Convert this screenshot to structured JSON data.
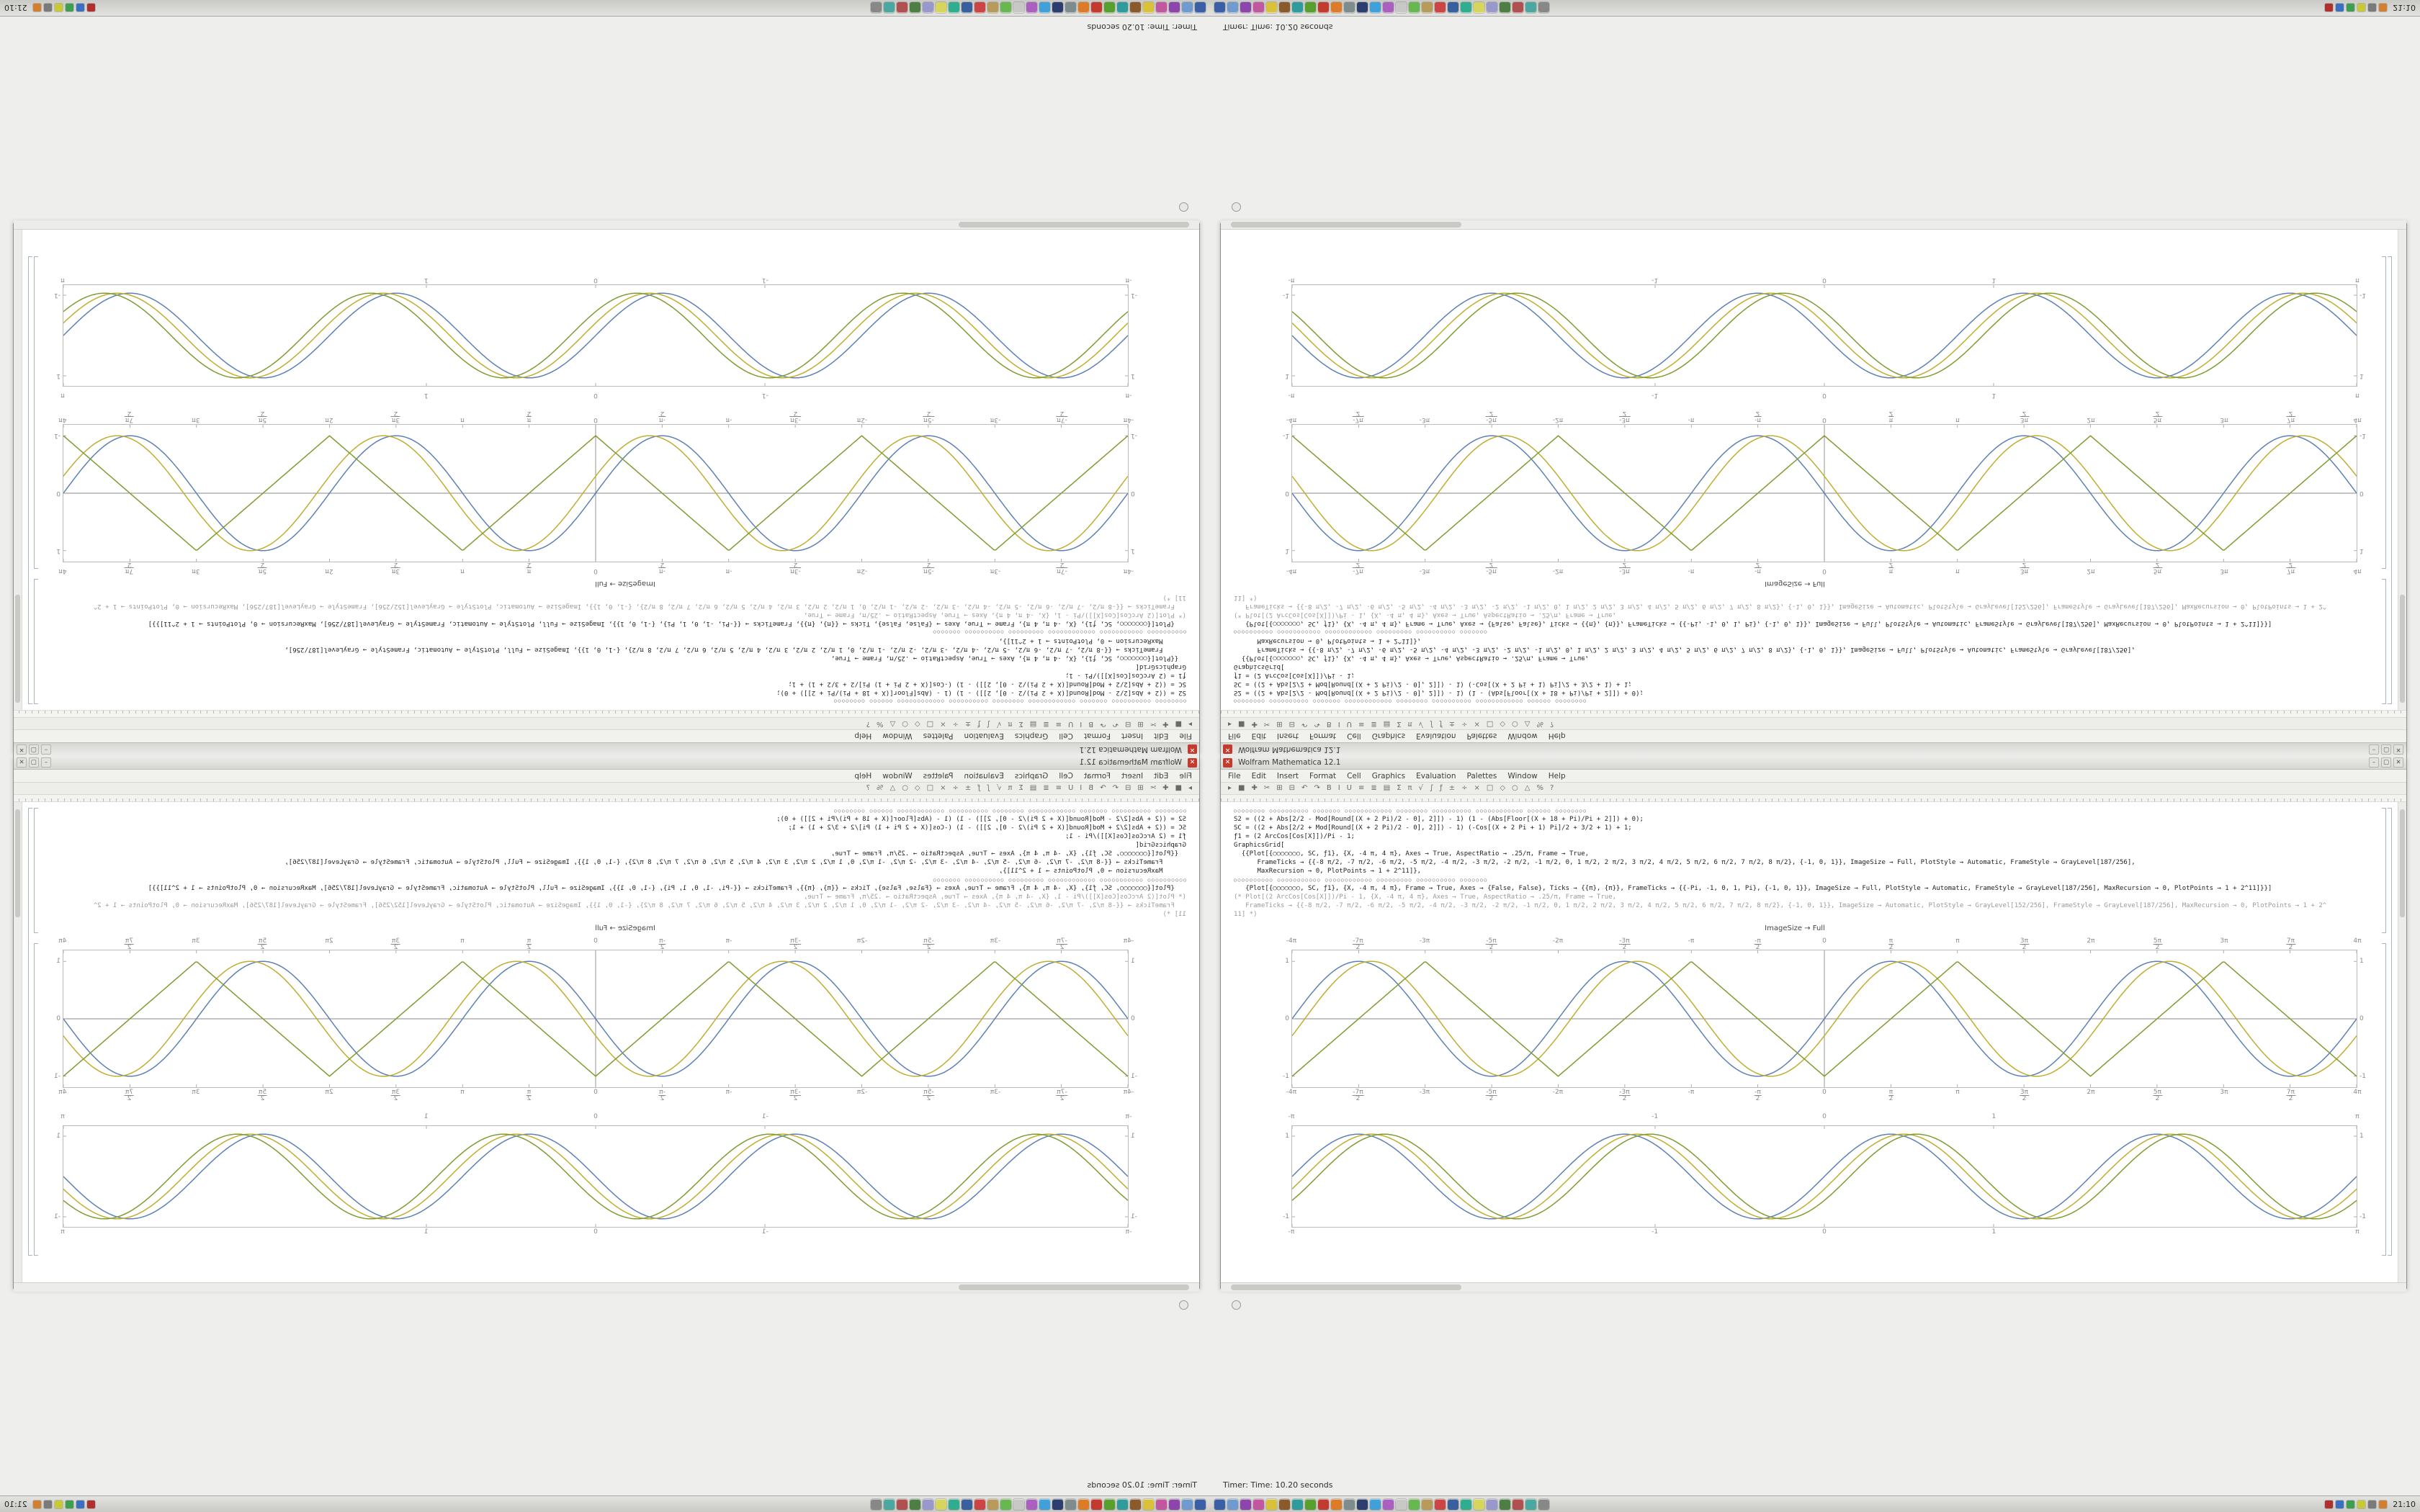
{
  "window": {
    "title": "Wolfram Mathematica 12.1",
    "close_label": "✕",
    "minimize_label": "–",
    "maximize_label": "▢",
    "menu_items": [
      "File",
      "Edit",
      "Insert",
      "Format",
      "Cell",
      "Graphics",
      "Evaluation",
      "Palettes",
      "Window",
      "Help"
    ],
    "toolbar_icons": [
      "▸",
      "■",
      "✚",
      "✂",
      "⊞",
      "⊟",
      "↶",
      "↷",
      "B",
      "I",
      "U",
      "≡",
      "≣",
      "▤",
      "Σ",
      "π",
      "√",
      "∫",
      "ƒ",
      "±",
      "÷",
      "×",
      "□",
      "◇",
      "○",
      "△",
      "%",
      "?"
    ]
  },
  "notebook": {
    "code_lines": [
      {
        "style": "circles",
        "text": "○○○○○○○○ ○○○○○○○○○○ ○○○○○○○ ○○○○○○○○○○○○ ○○○○○○○○ ○○○○○○○○○○ ○○○○○○○○○○○○ ○○○○○○ ○○○○○○○○"
      },
      {
        "style": "",
        "text": "S2 = ((2 + Abs[2/2 - Mod[Round[(X + 2 Pi)/2 - 0], 2]]) - 1) (1 - (Abs[Floor[(X + 18 + Pi)/Pi + 2]]) + 0);"
      },
      {
        "style": "",
        "text": "SC = ((2 + Abs[2/2 + Mod[Round[(X + 2 Pi)/2 - 0], 2]]) - 1) (-Cos[(X + 2 Pi + 1) Pi]/2 + 3/2 + 1) + 1;"
      },
      {
        "style": "",
        "text": "ƒ1 = (2 ArcCos[Cos[X]])/Pi - 1;"
      },
      {
        "style": "",
        "text": "GraphicsGrid["
      },
      {
        "style": "",
        "text": "  {{Plot[{○○○○○○○, SC, ƒ1}, {X, -4 π, 4 π}, Axes → True, AspectRatio → .25/π, Frame → True,"
      },
      {
        "style": "",
        "text": "      FrameTicks → {{-8 π/2, -7 π/2, -6 π/2, -5 π/2, -4 π/2, -3 π/2, -2 π/2, -1 π/2, 0, 1 π/2, 2 π/2, 3 π/2, 4 π/2, 5 π/2, 6 π/2, 7 π/2, 8 π/2}, {-1, 0, 1}}, ImageSize → Full, PlotStyle → Automatic, FrameStyle → GrayLevel[187/256],"
      },
      {
        "style": "",
        "text": "      MaxRecursion → 0, PlotPoints → 1 + 2^11]},"
      },
      {
        "style": "circles",
        "text": "○○○○○○○○○○ ○○○○○○○○○○○ ○○○○○○○○○○○○ ○○○○○○○○○ ○○○○○○○○○○ ○○○○○○○"
      },
      {
        "style": "",
        "text": "   {Plot[{○○○○○○○, SC, ƒ1}, {X, -4 π, 4 π}, Frame → True, Axes → {False, False}, Ticks → {{π}, {π}}, FrameTicks → {{-Pi, -1, 0, 1, Pi}, {-1, 0, 1}}, ImageSize → Full, PlotStyle → Automatic, FrameStyle → GrayLevel[187/256], MaxRecursion → 0, PlotPoints → 1 + 2^11]}}]"
      },
      {
        "style": "comment",
        "text": "(* Plot[(2 ArcCos[Cos[X]])/Pi - 1, {X, -4 π, 4 π}, Axes → True, AspectRatio → .25/π, Frame → True,"
      },
      {
        "style": "comment",
        "text": "   FrameTicks → {{-8 π/2, -7 π/2, -6 π/2, -5 π/2, -4 π/2, -3 π/2, -2 π/2, -1 π/2, 0, 1 π/2, 2 π/2, 3 π/2, 4 π/2, 5 π/2, 6 π/2, 7 π/2, 8 π/2}, {-1, 0, 1}}, ImageSize → Automatic, PlotStyle → GrayLevel[152/256], FrameStyle → GrayLevel[187/256], MaxRecursion → 0, PlotPoints → 1 + 2^11] *)"
      }
    ],
    "echo_line": "ImageSize → Full"
  },
  "chart_data": [
    {
      "type": "line",
      "x_domain_pi": [
        -4,
        4
      ],
      "ylim": [
        -1,
        1
      ],
      "frame": true,
      "axes": true,
      "frame_color": "#bcbcbc",
      "series": [
        {
          "name": "Sin[x]",
          "fn": "sin",
          "phase": 0,
          "color": "#5e81b5"
        },
        {
          "name": "SC shifted sine",
          "fn": "sin",
          "phase": 0.3,
          "color": "#bfae30"
        },
        {
          "name": "triangle wave 2 ArcCos[Cos[x]]/Pi - 1",
          "fn": "tri",
          "phase": 0,
          "color": "#7f9c32"
        }
      ],
      "x_ticks": [
        {
          "pos": 0,
          "label": "-4π"
        },
        {
          "pos": 0.0625,
          "label": "-7π/2"
        },
        {
          "pos": 0.125,
          "label": "-3π"
        },
        {
          "pos": 0.1875,
          "label": "-5π/2"
        },
        {
          "pos": 0.25,
          "label": "-2π"
        },
        {
          "pos": 0.3125,
          "label": "-3π/2"
        },
        {
          "pos": 0.375,
          "label": "-π"
        },
        {
          "pos": 0.4375,
          "label": "-π/2"
        },
        {
          "pos": 0.5,
          "label": "0"
        },
        {
          "pos": 0.5625,
          "label": "π/2"
        },
        {
          "pos": 0.625,
          "label": "π"
        },
        {
          "pos": 0.6875,
          "label": "3π/2"
        },
        {
          "pos": 0.75,
          "label": "2π"
        },
        {
          "pos": 0.8125,
          "label": "5π/2"
        },
        {
          "pos": 0.875,
          "label": "3π"
        },
        {
          "pos": 0.9375,
          "label": "7π/2"
        },
        {
          "pos": 1,
          "label": "4π"
        }
      ],
      "y_ticks": [
        {
          "pos": 0.08,
          "label": "1"
        },
        {
          "pos": 0.5,
          "label": "0"
        },
        {
          "pos": 0.92,
          "label": "-1"
        }
      ]
    },
    {
      "type": "line",
      "x_domain_pi": [
        -4,
        4
      ],
      "ylim": [
        -1,
        1
      ],
      "frame": true,
      "axes": false,
      "frame_color": "#bcbcbc",
      "series": [
        {
          "name": "Sin[x]",
          "fn": "sin",
          "phase": 0,
          "color": "#5e81b5"
        },
        {
          "name": "Sin[x - 0.3]",
          "fn": "sin",
          "phase": 0.3,
          "color": "#bfae30"
        },
        {
          "name": "Sin[x - 0.6]",
          "fn": "sin",
          "phase": 0.6,
          "color": "#7f9c32"
        }
      ],
      "x_ticks": [
        {
          "pos": 0,
          "label": "-π"
        },
        {
          "pos": 0.341,
          "label": "-1"
        },
        {
          "pos": 0.5,
          "label": "0"
        },
        {
          "pos": 0.659,
          "label": "1"
        },
        {
          "pos": 1,
          "label": "π"
        }
      ],
      "y_ticks": [
        {
          "pos": 0.1,
          "label": "1"
        },
        {
          "pos": 0.9,
          "label": "-1"
        }
      ]
    }
  ],
  "timer": {
    "text": "Timer: Time: 10.20 seconds"
  },
  "taskbar": {
    "clock": "21:10",
    "app_icons": [
      {
        "name": "app-01",
        "color": "#3b5ea8"
      },
      {
        "name": "app-02",
        "color": "#6f9bd1"
      },
      {
        "name": "app-03",
        "color": "#8e44ad"
      },
      {
        "name": "app-04",
        "color": "#c2579f"
      },
      {
        "name": "app-05",
        "color": "#d9c23a"
      },
      {
        "name": "app-06",
        "color": "#8a5a2b"
      },
      {
        "name": "app-07",
        "color": "#2e9c9c"
      },
      {
        "name": "app-08",
        "color": "#57a02c"
      },
      {
        "name": "app-09",
        "color": "#c23b2e"
      },
      {
        "name": "app-10",
        "color": "#de7b28"
      },
      {
        "name": "app-11",
        "color": "#7f8c8d"
      },
      {
        "name": "app-12",
        "color": "#2c3e70"
      },
      {
        "name": "app-13",
        "color": "#3fa0dc"
      },
      {
        "name": "app-14",
        "color": "#ab5fc0"
      },
      {
        "name": "app-15",
        "color": "#c8c8c6"
      },
      {
        "name": "app-16",
        "color": "#67b84f"
      },
      {
        "name": "app-17",
        "color": "#b89a5a"
      },
      {
        "name": "app-18",
        "color": "#cc4444"
      },
      {
        "name": "app-19",
        "color": "#3a5f9e"
      },
      {
        "name": "app-20",
        "color": "#2fae8f"
      },
      {
        "name": "app-21",
        "color": "#d6d65e"
      },
      {
        "name": "app-22",
        "color": "#9898cc"
      },
      {
        "name": "app-23",
        "color": "#4d7f43"
      },
      {
        "name": "app-24",
        "color": "#b05050"
      },
      {
        "name": "app-25",
        "color": "#4aa8a0"
      },
      {
        "name": "app-26",
        "color": "#888888"
      }
    ],
    "tray_icons": [
      {
        "name": "tray-1",
        "color": "#b03030"
      },
      {
        "name": "tray-2",
        "color": "#3b6fc0"
      },
      {
        "name": "tray-3",
        "color": "#3f9f50"
      },
      {
        "name": "tray-4",
        "color": "#c8c838"
      },
      {
        "name": "tray-5",
        "color": "#7a7a7a"
      },
      {
        "name": "tray-6",
        "color": "#d08030"
      }
    ]
  }
}
